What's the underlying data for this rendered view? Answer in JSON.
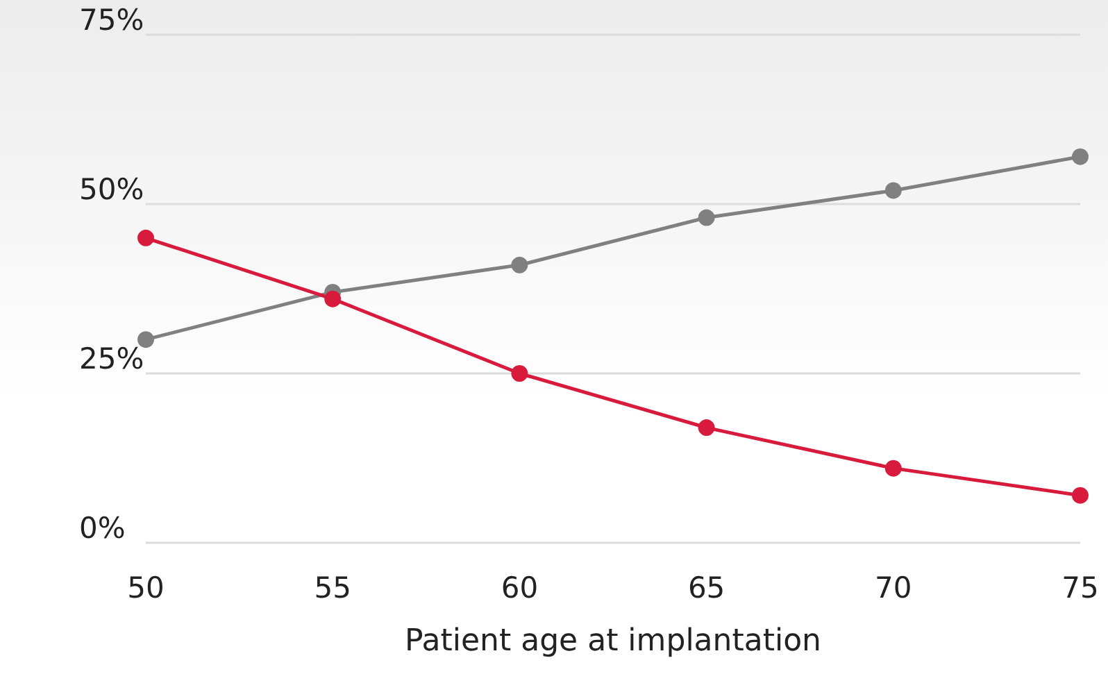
{
  "chart_data": {
    "type": "line",
    "xlabel": "Patient age at implantation",
    "x": [
      50,
      55,
      60,
      65,
      70,
      75
    ],
    "series": [
      {
        "color": "#808080",
        "values": [
          30,
          37,
          41,
          48,
          52,
          57
        ]
      },
      {
        "color": "#d81b3c",
        "values": [
          45,
          36,
          25,
          17,
          11,
          7
        ]
      }
    ],
    "xlim": [
      50,
      75
    ],
    "xticks": [
      50,
      55,
      60,
      65,
      70,
      75
    ],
    "ylim": [
      0,
      75
    ],
    "yticks": [
      {
        "value": 0,
        "label": "0%"
      },
      {
        "value": 25,
        "label": "25%"
      },
      {
        "value": 50,
        "label": "50%"
      },
      {
        "value": 75,
        "label": "75%"
      }
    ],
    "grid": "y",
    "marker": "circle",
    "line_style": "solid"
  }
}
